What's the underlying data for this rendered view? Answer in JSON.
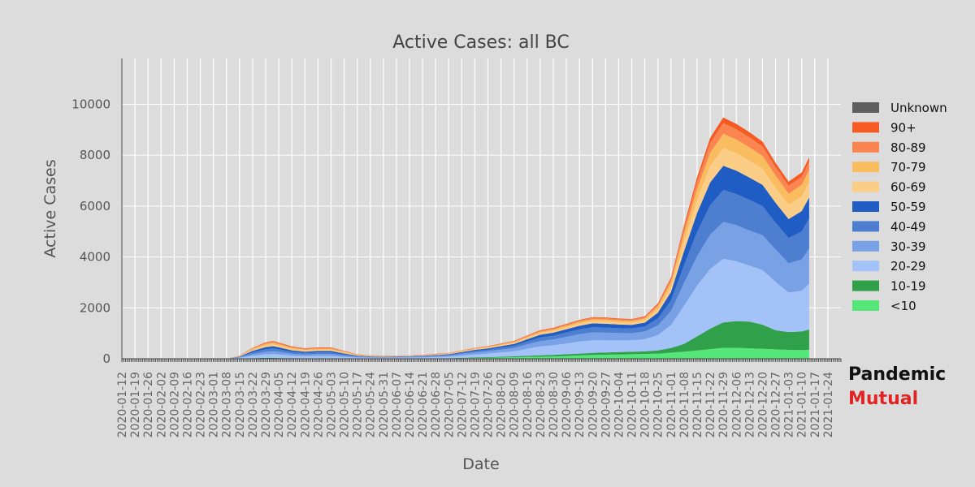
{
  "brand": {
    "line1": "Pandemic",
    "line2": "Mutual"
  },
  "chart_data": {
    "type": "area",
    "stacked": true,
    "title": "Active Cases: all BC",
    "xlabel": "Date",
    "ylabel": "Active Cases",
    "ylim": [
      0,
      11800
    ],
    "xlim": [
      "2020-01-12",
      "2021-01-31"
    ],
    "yticks": [
      0,
      2000,
      4000,
      6000,
      8000,
      10000
    ],
    "xticks": [
      "2020-01-12",
      "2020-01-19",
      "2020-01-26",
      "2020-02-02",
      "2020-02-09",
      "2020-02-16",
      "2020-02-23",
      "2020-03-01",
      "2020-03-08",
      "2020-03-15",
      "2020-03-22",
      "2020-03-29",
      "2020-04-05",
      "2020-04-12",
      "2020-04-19",
      "2020-04-26",
      "2020-05-03",
      "2020-05-10",
      "2020-05-17",
      "2020-05-24",
      "2020-05-31",
      "2020-06-07",
      "2020-06-14",
      "2020-06-21",
      "2020-06-28",
      "2020-07-05",
      "2020-07-12",
      "2020-07-19",
      "2020-07-26",
      "2020-08-02",
      "2020-08-09",
      "2020-08-16",
      "2020-08-23",
      "2020-08-30",
      "2020-09-06",
      "2020-09-13",
      "2020-09-20",
      "2020-09-27",
      "2020-10-04",
      "2020-10-11",
      "2020-10-18",
      "2020-10-25",
      "2020-11-01",
      "2020-11-08",
      "2020-11-15",
      "2020-11-22",
      "2020-11-29",
      "2020-12-06",
      "2020-12-13",
      "2020-12-20",
      "2020-12-27",
      "2021-01-03",
      "2021-01-10",
      "2021-01-17",
      "2021-01-24"
    ],
    "grid": true,
    "legend_position": "right",
    "dates": [
      "2020-03-08",
      "2020-03-15",
      "2020-03-22",
      "2020-03-29",
      "2020-04-02",
      "2020-04-05",
      "2020-04-12",
      "2020-04-19",
      "2020-04-26",
      "2020-05-03",
      "2020-05-10",
      "2020-05-17",
      "2020-05-24",
      "2020-05-31",
      "2020-06-07",
      "2020-06-14",
      "2020-06-21",
      "2020-06-28",
      "2020-07-05",
      "2020-07-12",
      "2020-07-19",
      "2020-07-26",
      "2020-08-02",
      "2020-08-09",
      "2020-08-16",
      "2020-08-23",
      "2020-08-30",
      "2020-09-06",
      "2020-09-13",
      "2020-09-20",
      "2020-09-27",
      "2020-10-04",
      "2020-10-11",
      "2020-10-18",
      "2020-10-25",
      "2020-11-01",
      "2020-11-08",
      "2020-11-15",
      "2020-11-22",
      "2020-11-29",
      "2020-12-06",
      "2020-12-13",
      "2020-12-20",
      "2020-12-27",
      "2021-01-03",
      "2021-01-10",
      "2021-01-14"
    ],
    "series": [
      {
        "name": "<10",
        "color": "#55e67a",
        "values": [
          0,
          5,
          10,
          15,
          15,
          12,
          8,
          8,
          8,
          8,
          5,
          5,
          5,
          5,
          5,
          5,
          5,
          10,
          10,
          20,
          30,
          40,
          50,
          60,
          70,
          80,
          90,
          110,
          130,
          150,
          160,
          170,
          180,
          190,
          200,
          240,
          280,
          330,
          380,
          430,
          430,
          410,
          390,
          370,
          350,
          340,
          350
        ]
      },
      {
        "name": "10-19",
        "color": "#30a04a",
        "values": [
          0,
          5,
          15,
          20,
          20,
          18,
          14,
          12,
          12,
          12,
          8,
          8,
          6,
          6,
          6,
          6,
          6,
          8,
          10,
          15,
          20,
          25,
          30,
          35,
          45,
          55,
          60,
          70,
          75,
          80,
          85,
          90,
          95,
          100,
          130,
          180,
          300,
          550,
          800,
          1000,
          1050,
          1050,
          950,
          750,
          700,
          730,
          800
        ]
      },
      {
        "name": "20-29",
        "color": "#a3c2f7",
        "values": [
          0,
          25,
          90,
          140,
          150,
          140,
          100,
          80,
          90,
          90,
          60,
          35,
          25,
          25,
          30,
          35,
          40,
          45,
          60,
          90,
          120,
          140,
          170,
          200,
          280,
          350,
          380,
          420,
          470,
          500,
          480,
          460,
          450,
          480,
          600,
          900,
          1500,
          2000,
          2350,
          2500,
          2350,
          2200,
          2150,
          1900,
          1550,
          1600,
          1800
        ]
      },
      {
        "name": "30-39",
        "color": "#79a1e5",
        "values": [
          0,
          20,
          70,
          100,
          110,
          100,
          80,
          70,
          75,
          75,
          50,
          30,
          25,
          20,
          25,
          25,
          30,
          35,
          45,
          65,
          80,
          90,
          110,
          130,
          170,
          210,
          230,
          260,
          290,
          310,
          300,
          290,
          280,
          300,
          380,
          550,
          900,
          1150,
          1350,
          1450,
          1420,
          1380,
          1360,
          1280,
          1150,
          1230,
          1380
        ]
      },
      {
        "name": "40-49",
        "color": "#4d7ed0",
        "values": [
          0,
          20,
          70,
          100,
          110,
          100,
          70,
          60,
          65,
          65,
          45,
          25,
          18,
          15,
          15,
          18,
          20,
          25,
          30,
          40,
          55,
          60,
          75,
          85,
          110,
          140,
          150,
          170,
          190,
          200,
          200,
          190,
          185,
          200,
          280,
          420,
          700,
          950,
          1150,
          1250,
          1220,
          1200,
          1150,
          1050,
          1000,
          1100,
          1180
        ]
      },
      {
        "name": "50-59",
        "color": "#1f5cc3",
        "values": [
          0,
          15,
          55,
          85,
          90,
          80,
          60,
          50,
          55,
          55,
          40,
          22,
          15,
          12,
          12,
          15,
          18,
          20,
          25,
          35,
          45,
          50,
          60,
          70,
          90,
          110,
          115,
          130,
          140,
          150,
          150,
          145,
          140,
          150,
          220,
          330,
          550,
          750,
          900,
          950,
          920,
          880,
          830,
          780,
          740,
          800,
          830
        ]
      },
      {
        "name": "60-69",
        "color": "#fbcd87",
        "values": [
          0,
          15,
          45,
          70,
          75,
          70,
          55,
          45,
          50,
          50,
          35,
          20,
          15,
          12,
          12,
          12,
          15,
          18,
          20,
          25,
          30,
          35,
          40,
          45,
          55,
          65,
          70,
          80,
          90,
          95,
          95,
          90,
          88,
          95,
          140,
          220,
          380,
          520,
          650,
          700,
          690,
          670,
          640,
          600,
          560,
          580,
          600
        ]
      },
      {
        "name": "70-79",
        "color": "#f9bc5f",
        "values": [
          0,
          10,
          35,
          55,
          60,
          55,
          45,
          40,
          42,
          42,
          30,
          15,
          12,
          10,
          10,
          10,
          12,
          14,
          16,
          20,
          25,
          28,
          32,
          36,
          44,
          52,
          55,
          60,
          68,
          72,
          72,
          70,
          68,
          75,
          110,
          170,
          300,
          420,
          520,
          560,
          540,
          520,
          500,
          470,
          440,
          450,
          470
        ]
      },
      {
        "name": "80-89",
        "color": "#fa8550",
        "values": [
          0,
          8,
          25,
          40,
          45,
          42,
          35,
          30,
          32,
          32,
          22,
          12,
          10,
          8,
          8,
          8,
          10,
          12,
          12,
          15,
          18,
          20,
          24,
          28,
          34,
          40,
          42,
          46,
          50,
          52,
          52,
          50,
          48,
          52,
          80,
          120,
          220,
          300,
          380,
          420,
          400,
          390,
          370,
          330,
          310,
          320,
          330
        ]
      },
      {
        "name": "90+",
        "color": "#f55b22",
        "values": [
          0,
          4,
          12,
          20,
          22,
          20,
          18,
          16,
          16,
          16,
          12,
          6,
          5,
          4,
          4,
          4,
          5,
          6,
          6,
          8,
          9,
          10,
          12,
          14,
          16,
          20,
          22,
          24,
          26,
          28,
          28,
          26,
          25,
          28,
          40,
          60,
          110,
          160,
          200,
          220,
          210,
          200,
          190,
          170,
          160,
          170,
          170
        ]
      },
      {
        "name": "Unknown",
        "color": "#5e5e5e",
        "values": [
          0,
          0,
          0,
          0,
          0,
          0,
          0,
          0,
          0,
          0,
          0,
          0,
          0,
          0,
          0,
          0,
          0,
          0,
          0,
          0,
          0,
          0,
          0,
          0,
          0,
          0,
          0,
          0,
          0,
          0,
          0,
          0,
          0,
          0,
          0,
          0,
          0,
          0,
          0,
          0,
          0,
          0,
          0,
          0,
          0,
          0,
          0
        ]
      }
    ]
  }
}
